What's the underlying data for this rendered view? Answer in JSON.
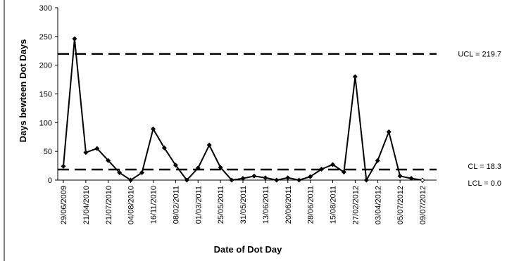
{
  "chart_data": {
    "type": "line",
    "title": "",
    "xlabel": "Date of Dot Day",
    "ylabel": "Days bewteen Dot Days",
    "ylim": [
      0,
      300
    ],
    "yticks": [
      0,
      50,
      100,
      150,
      200,
      250,
      300
    ],
    "grid": false,
    "legend": "none",
    "x_tick_labels": [
      "29/06/2009",
      "21/04/2010",
      "21/07/2010",
      "04/08/2010",
      "16/11/2010",
      "08/02/2011",
      "01/03/2011",
      "25/05/2011",
      "31/05/2011",
      "13/06/2011",
      "20/06/2011",
      "28/06/2011",
      "15/08/2011",
      "27/02/2012",
      "03/04/2012",
      "05/07/2012",
      "09/07/2012"
    ],
    "series": [
      {
        "color": "#000000",
        "values": [
          24,
          246,
          48,
          55,
          34,
          13,
          0,
          13,
          89,
          56,
          26,
          0,
          21,
          61,
          22,
          0,
          3,
          7,
          4,
          0,
          4,
          0,
          6,
          19,
          27,
          14,
          180,
          0,
          34,
          84,
          7,
          3,
          0
        ]
      }
    ],
    "control_limits": [
      {
        "label": "UCL = 219.7",
        "value": 219.7,
        "color": "#000000"
      },
      {
        "label": "CL = 18.3",
        "value": 18.3,
        "color": "#000000"
      },
      {
        "label": "LCL = 0.0",
        "value": 0.0,
        "color": "#000000"
      }
    ]
  }
}
